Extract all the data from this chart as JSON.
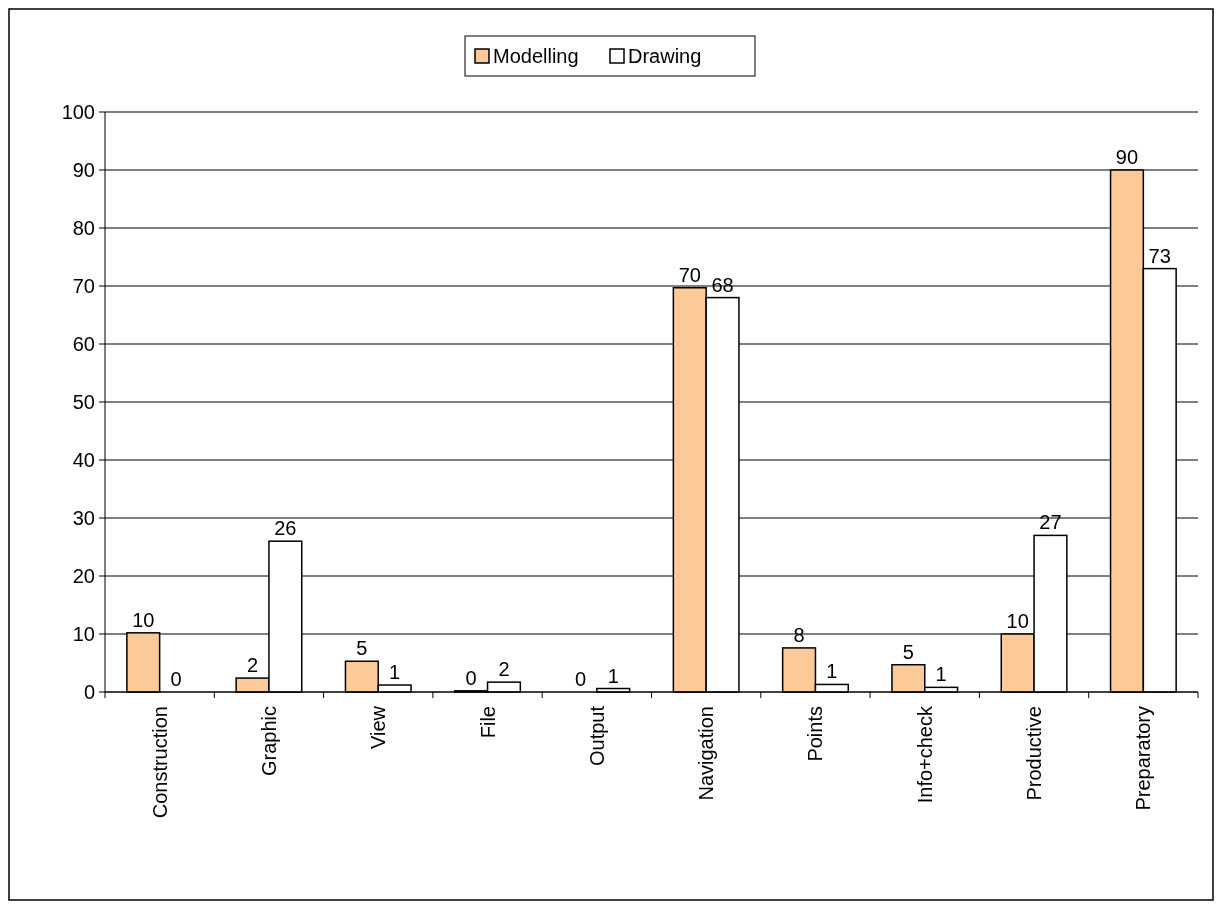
{
  "chart_data": {
    "type": "bar",
    "categories": [
      "Construction",
      "Graphic",
      "View",
      "File",
      "Output",
      "Navigation",
      "Points",
      "Info+check",
      "Productive",
      "Preparatory"
    ],
    "series": [
      {
        "name": "Modelling",
        "color": "#fcca98",
        "values": [
          10.2,
          2.4,
          5.3,
          0.2,
          0,
          69.7,
          7.6,
          4.7,
          10,
          90
        ],
        "value_labels": [
          "10",
          "2",
          "5",
          "0",
          "0",
          "70",
          "8",
          "5",
          "10",
          "90"
        ]
      },
      {
        "name": "Drawing",
        "color": "#ffffff",
        "values": [
          0,
          26,
          1.2,
          1.7,
          0.6,
          68,
          1.3,
          0.8,
          27,
          73
        ],
        "value_labels": [
          "0",
          "26",
          "1",
          "2",
          "1",
          "68",
          "1",
          "1",
          "27",
          "73"
        ]
      }
    ],
    "ylim": [
      0,
      100
    ],
    "yticks": [
      0,
      10,
      20,
      30,
      40,
      50,
      60,
      70,
      80,
      90,
      100
    ],
    "grid": "y",
    "legend": "top"
  }
}
